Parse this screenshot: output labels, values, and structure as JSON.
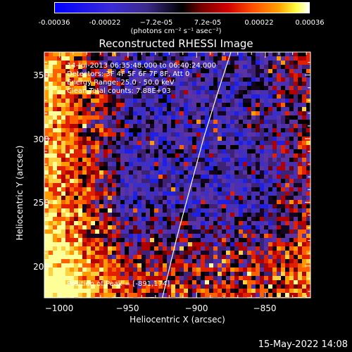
{
  "colorbar": {
    "ticks": [
      "-0.00036",
      "-0.00022",
      "−7.2e-05",
      "7.2e-05",
      "0.00022",
      "0.00036"
    ],
    "tick_values": [
      -0.00036,
      -0.00022,
      -7.2e-05,
      7.2e-05,
      0.00022,
      0.00036
    ],
    "unit_label": "(photons cm⁻² s⁻¹ asec⁻²)"
  },
  "chart_data": {
    "type": "heatmap",
    "title": "Reconstructed RHESSI Image",
    "xlabel": "Heliocentric X (arcsec)",
    "ylabel": "Heliocentric Y (arcsec)",
    "xlim": [
      -1011,
      -817
    ],
    "ylim": [
      175,
      368
    ],
    "xticks": [
      -1000,
      -950,
      -900,
      -850
    ],
    "yticks": [
      200,
      250,
      300,
      350
    ],
    "xtick_labels": [
      "−1000",
      "−950",
      "−900",
      "−850"
    ],
    "ytick_labels": [
      "200",
      "250",
      "300",
      "350"
    ],
    "annotations": [
      "14-Jul-2013 06:35:48.000 to 06:40:24.000",
      "Detectors: 3F 4F 5F 6F 7F 8F, Att 0",
      "Energy Range: 25.0 - 50.0 keV",
      "Clean     Total counts: 7.88E+03"
    ],
    "peak_label": "Position of Peak = [-891,174]",
    "peak": [
      -891,
      174
    ],
    "limb_curve": [
      [
        -925,
        175
      ],
      [
        -915,
        220
      ],
      [
        -905,
        260
      ],
      [
        -895,
        300
      ],
      [
        -885,
        335
      ],
      [
        -875,
        368
      ]
    ],
    "colors": {
      "limb": "#ffffff",
      "low": "#1a1aff",
      "mid": "#5a2ab5",
      "high": "#ffff80"
    }
  },
  "footer": {
    "date": "15-May-2022 14:08"
  }
}
